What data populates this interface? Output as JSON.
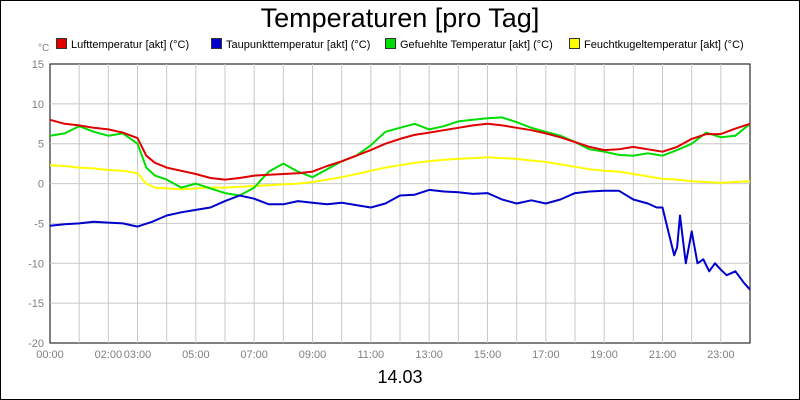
{
  "title": "Temperaturen [pro Tag]",
  "date_label": "14.03",
  "chart_data": {
    "type": "line",
    "title": "Temperaturen [pro Tag]",
    "xlabel": "14.03",
    "ylabel": "°C",
    "xlim": [
      0,
      24
    ],
    "ylim": [
      -20,
      15
    ],
    "yticks": [
      15,
      10,
      5,
      0,
      -5,
      -10,
      -15,
      -20
    ],
    "xtick_labels": [
      "00:00",
      "02:00",
      "03:00",
      "05:00",
      "07:00",
      "09:00",
      "11:00",
      "13:00",
      "15:00",
      "17:00",
      "19:00",
      "21:00",
      "23:00"
    ],
    "xtick_hours": [
      0,
      2,
      3,
      5,
      7,
      9,
      11,
      13,
      15,
      17,
      19,
      21,
      23
    ],
    "grid": true,
    "legend_position": "top",
    "background": "#ffffff",
    "grid_color": "#c8c8c8",
    "series": [
      {
        "name": "Lufttemperatur [akt] (°C)",
        "color": "#e00000",
        "x": [
          0,
          0.5,
          1,
          1.5,
          2,
          2.5,
          3,
          3.3,
          3.6,
          4,
          4.5,
          5,
          5.5,
          6,
          6.5,
          7,
          7.5,
          8,
          8.5,
          9,
          9.5,
          10,
          10.5,
          11,
          11.5,
          12,
          12.5,
          13,
          13.5,
          14,
          14.5,
          15,
          15.5,
          16,
          16.5,
          17,
          17.5,
          18,
          18.5,
          19,
          19.5,
          20,
          20.5,
          21,
          21.5,
          22,
          22.5,
          23,
          23.5,
          24
        ],
        "y": [
          8.0,
          7.5,
          7.3,
          7.0,
          6.8,
          6.4,
          5.7,
          3.5,
          2.6,
          2.0,
          1.6,
          1.2,
          0.7,
          0.5,
          0.7,
          1.0,
          1.1,
          1.2,
          1.3,
          1.5,
          2.2,
          2.8,
          3.5,
          4.2,
          5.0,
          5.6,
          6.1,
          6.4,
          6.7,
          7.0,
          7.3,
          7.5,
          7.3,
          7.0,
          6.7,
          6.3,
          5.8,
          5.2,
          4.6,
          4.2,
          4.3,
          4.6,
          4.3,
          4.0,
          4.6,
          5.6,
          6.2,
          6.2,
          6.9,
          7.5
        ]
      },
      {
        "name": "Taupunkttemperatur [akt] (°C)",
        "color": "#0000cc",
        "x": [
          0,
          0.5,
          1,
          1.5,
          2,
          2.5,
          3,
          3.5,
          4,
          4.5,
          5,
          5.5,
          6,
          6.5,
          7,
          7.5,
          8,
          8.5,
          9,
          9.5,
          10,
          10.5,
          11,
          11.5,
          12,
          12.5,
          13,
          13.5,
          14,
          14.5,
          15,
          15.5,
          16,
          16.5,
          17,
          17.5,
          18,
          18.5,
          19,
          19.5,
          20,
          20.2,
          20.5,
          20.8,
          21,
          21.2,
          21.4,
          21.5,
          21.6,
          21.8,
          22,
          22.2,
          22.4,
          22.6,
          22.8,
          23,
          23.2,
          23.5,
          23.8,
          24
        ],
        "y": [
          -5.3,
          -5.1,
          -5.0,
          -4.8,
          -4.9,
          -5.0,
          -5.4,
          -4.8,
          -4.0,
          -3.6,
          -3.3,
          -3.0,
          -2.2,
          -1.5,
          -1.9,
          -2.6,
          -2.6,
          -2.2,
          -2.4,
          -2.6,
          -2.4,
          -2.7,
          -3.0,
          -2.5,
          -1.5,
          -1.4,
          -0.8,
          -1.0,
          -1.1,
          -1.3,
          -1.2,
          -2.0,
          -2.5,
          -2.1,
          -2.5,
          -2.0,
          -1.2,
          -1.0,
          -0.9,
          -0.9,
          -2.0,
          -2.2,
          -2.5,
          -3.0,
          -3.0,
          -6.0,
          -9.0,
          -8.0,
          -4.0,
          -10.0,
          -6.0,
          -10.0,
          -9.5,
          -11.0,
          -10.0,
          -10.8,
          -11.5,
          -11.0,
          -12.5,
          -13.3
        ]
      },
      {
        "name": "Gefuehlte Temperatur [akt] (°C)",
        "color": "#00dd00",
        "x": [
          0,
          0.5,
          1,
          1.5,
          2,
          2.5,
          3,
          3.3,
          3.6,
          4,
          4.5,
          5,
          5.5,
          6,
          6.5,
          7,
          7.5,
          8,
          8.5,
          9,
          9.5,
          10,
          10.5,
          11,
          11.5,
          12,
          12.5,
          13,
          13.5,
          14,
          14.5,
          15,
          15.5,
          16,
          16.5,
          17,
          17.5,
          18,
          18.5,
          19,
          19.5,
          20,
          20.5,
          21,
          21.5,
          22,
          22.5,
          23,
          23.5,
          24
        ],
        "y": [
          6.0,
          6.3,
          7.2,
          6.5,
          6.0,
          6.3,
          5.0,
          2.0,
          1.0,
          0.5,
          -0.5,
          0.0,
          -0.6,
          -1.2,
          -1.5,
          -0.5,
          1.5,
          2.5,
          1.5,
          0.8,
          1.8,
          2.8,
          3.5,
          4.8,
          6.5,
          7.0,
          7.5,
          6.8,
          7.2,
          7.8,
          8.0,
          8.2,
          8.3,
          7.7,
          7.0,
          6.5,
          6.0,
          5.2,
          4.3,
          4.0,
          3.6,
          3.5,
          3.8,
          3.5,
          4.2,
          5.0,
          6.4,
          5.8,
          6.0,
          7.5
        ]
      },
      {
        "name": "Feuchtkugeltemperatur [akt] (°C)",
        "color": "#ffff00",
        "x": [
          0,
          0.5,
          1,
          1.5,
          2,
          2.5,
          3,
          3.3,
          3.6,
          4,
          4.5,
          5,
          5.5,
          6,
          6.5,
          7,
          7.5,
          8,
          8.5,
          9,
          9.5,
          10,
          10.5,
          11,
          11.5,
          12,
          12.5,
          13,
          13.5,
          14,
          14.5,
          15,
          15.5,
          16,
          16.5,
          17,
          17.5,
          18,
          18.5,
          19,
          19.5,
          20,
          20.5,
          21,
          21.5,
          22,
          22.5,
          23,
          23.5,
          24
        ],
        "y": [
          2.3,
          2.2,
          2.0,
          1.9,
          1.7,
          1.6,
          1.3,
          0.0,
          -0.5,
          -0.6,
          -0.7,
          -0.6,
          -0.5,
          -0.5,
          -0.4,
          -0.3,
          -0.2,
          -0.1,
          0.0,
          0.2,
          0.5,
          0.8,
          1.2,
          1.6,
          2.0,
          2.3,
          2.6,
          2.8,
          3.0,
          3.1,
          3.2,
          3.3,
          3.2,
          3.1,
          2.9,
          2.7,
          2.4,
          2.1,
          1.8,
          1.6,
          1.5,
          1.2,
          0.9,
          0.6,
          0.5,
          0.3,
          0.2,
          0.1,
          0.2,
          0.3
        ]
      }
    ]
  }
}
